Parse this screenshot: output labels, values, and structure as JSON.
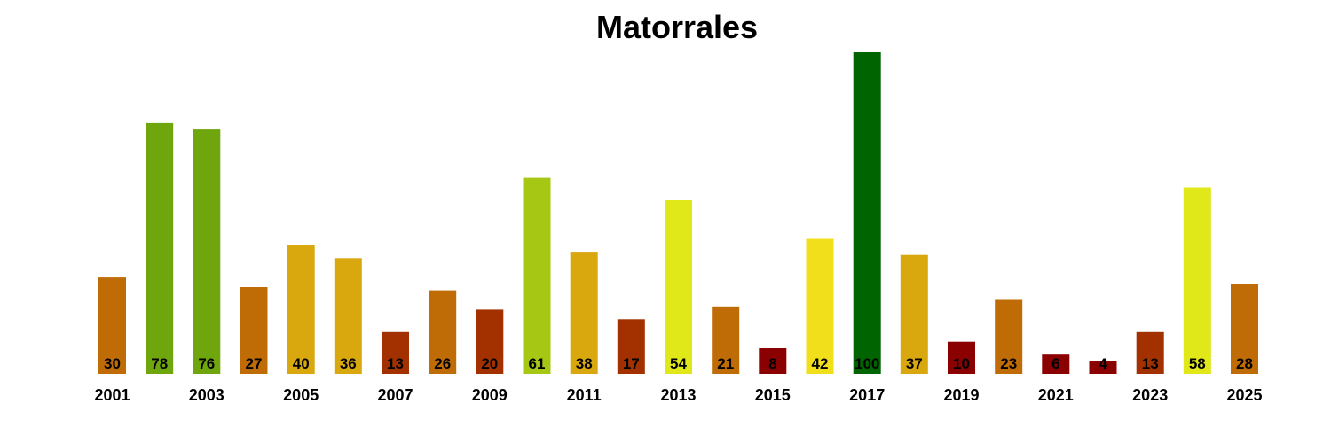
{
  "chart_data": {
    "type": "bar",
    "title": "Matorrales",
    "xlabel": "",
    "ylabel": "",
    "ylim": [
      0,
      100
    ],
    "grid": false,
    "legend": "none",
    "categories": [
      "2001",
      "2002",
      "2003",
      "2004",
      "2005",
      "2006",
      "2007",
      "2008",
      "2009",
      "2010",
      "2011",
      "2012",
      "2013",
      "2014",
      "2015",
      "2016",
      "2017",
      "2018",
      "2019",
      "2020",
      "2021",
      "2022",
      "2023",
      "2024",
      "2025"
    ],
    "values": [
      30,
      78,
      76,
      27,
      40,
      36,
      13,
      26,
      20,
      61,
      38,
      17,
      54,
      21,
      8,
      42,
      100,
      37,
      10,
      23,
      6,
      4,
      13,
      58,
      28
    ],
    "x_tick_labels": [
      "2001",
      "2003",
      "2005",
      "2007",
      "2009",
      "2011",
      "2013",
      "2015",
      "2017",
      "2019",
      "2021",
      "2023",
      "2025"
    ],
    "bar_colors": [
      "#bf6c06",
      "#6fa60e",
      "#6fa60e",
      "#bf6c06",
      "#d8a80e",
      "#d8a80e",
      "#a33100",
      "#bf6c06",
      "#a33100",
      "#a6c714",
      "#d8a80e",
      "#a33100",
      "#e0e81a",
      "#bf6c06",
      "#8b0000",
      "#f0df1a",
      "#006400",
      "#d8a80e",
      "#8b0000",
      "#bf6c06",
      "#8b0000",
      "#8b0000",
      "#a33100",
      "#e0e81a",
      "#bf6c06"
    ]
  }
}
